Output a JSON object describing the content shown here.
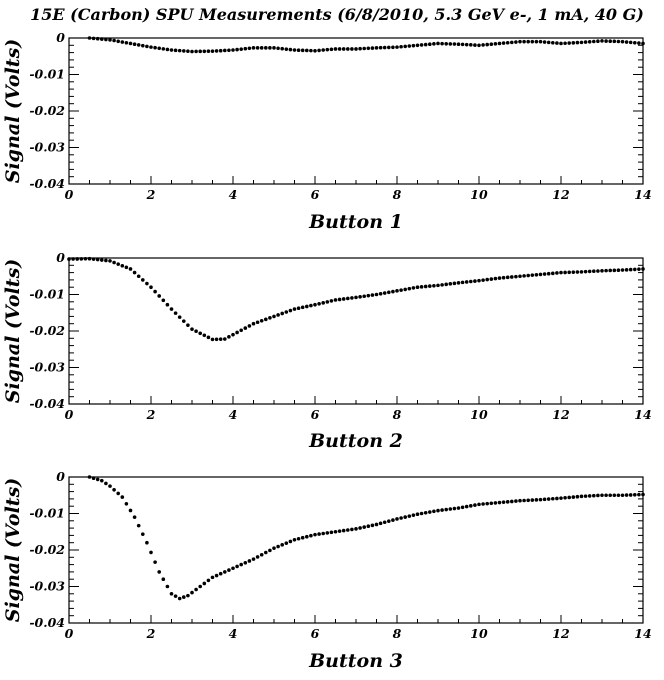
{
  "title": "15E (Carbon) SPU Measurements (6/8/2010, 5.3 GeV e-, 1 mA, 40 G)",
  "chart_data": [
    {
      "type": "scatter",
      "xlabel": "Button 1",
      "ylabel": "Signal (Volts)",
      "xlim": [
        0,
        14
      ],
      "ylim": [
        -0.04,
        0
      ],
      "xticks": [
        "0",
        "2",
        "4",
        "6",
        "8",
        "10",
        "12",
        "14"
      ],
      "yticks": [
        "0",
        "-0.01",
        "-0.02",
        "-0.03",
        "-0.04"
      ],
      "grid": false,
      "legend": "none",
      "marker_color": "#000000",
      "points": [
        [
          0.5,
          0.0
        ],
        [
          1.0,
          -0.0005
        ],
        [
          1.5,
          -0.0015
        ],
        [
          2.0,
          -0.0025
        ],
        [
          2.5,
          -0.0033
        ],
        [
          3.0,
          -0.0037
        ],
        [
          3.5,
          -0.0036
        ],
        [
          4.0,
          -0.0033
        ],
        [
          4.5,
          -0.0027
        ],
        [
          5.0,
          -0.0027
        ],
        [
          5.5,
          -0.0033
        ],
        [
          6.0,
          -0.0035
        ],
        [
          6.5,
          -0.003
        ],
        [
          7.0,
          -0.003
        ],
        [
          7.5,
          -0.0027
        ],
        [
          8.0,
          -0.0025
        ],
        [
          8.5,
          -0.002
        ],
        [
          9.0,
          -0.0015
        ],
        [
          9.5,
          -0.0017
        ],
        [
          10.0,
          -0.002
        ],
        [
          10.5,
          -0.0015
        ],
        [
          11.0,
          -0.001
        ],
        [
          11.5,
          -0.001
        ],
        [
          12.0,
          -0.0015
        ],
        [
          12.5,
          -0.0012
        ],
        [
          13.0,
          -0.0008
        ],
        [
          13.5,
          -0.001
        ],
        [
          14.0,
          -0.0015
        ]
      ]
    },
    {
      "type": "scatter",
      "xlabel": "Button 2",
      "ylabel": "Signal (Volts)",
      "xlim": [
        0,
        14
      ],
      "ylim": [
        -0.04,
        0
      ],
      "xticks": [
        "0",
        "2",
        "4",
        "6",
        "8",
        "10",
        "12",
        "14"
      ],
      "yticks": [
        "0",
        "-0.01",
        "-0.02",
        "-0.03",
        "-0.04"
      ],
      "grid": false,
      "legend": "none",
      "marker_color": "#000000",
      "points": [
        [
          0.0,
          -0.0003
        ],
        [
          0.5,
          -0.0002
        ],
        [
          1.0,
          -0.0008
        ],
        [
          1.5,
          -0.003
        ],
        [
          2.0,
          -0.008
        ],
        [
          2.5,
          -0.014
        ],
        [
          3.0,
          -0.0195
        ],
        [
          3.5,
          -0.0223
        ],
        [
          3.8,
          -0.0222
        ],
        [
          4.0,
          -0.021
        ],
        [
          4.5,
          -0.018
        ],
        [
          5.0,
          -0.016
        ],
        [
          5.5,
          -0.014
        ],
        [
          6.0,
          -0.0128
        ],
        [
          6.5,
          -0.0115
        ],
        [
          7.0,
          -0.0108
        ],
        [
          7.5,
          -0.01
        ],
        [
          8.0,
          -0.009
        ],
        [
          8.5,
          -0.008
        ],
        [
          9.0,
          -0.0075
        ],
        [
          9.5,
          -0.0068
        ],
        [
          10.0,
          -0.0062
        ],
        [
          10.5,
          -0.0055
        ],
        [
          11.0,
          -0.005
        ],
        [
          11.5,
          -0.0045
        ],
        [
          12.0,
          -0.004
        ],
        [
          12.5,
          -0.0038
        ],
        [
          13.0,
          -0.0035
        ],
        [
          13.5,
          -0.0033
        ],
        [
          14.0,
          -0.003
        ]
      ]
    },
    {
      "type": "scatter",
      "xlabel": "Button 3",
      "ylabel": "Signal (Volts)",
      "xlim": [
        0,
        14
      ],
      "ylim": [
        -0.04,
        0
      ],
      "xticks": [
        "0",
        "2",
        "4",
        "6",
        "8",
        "10",
        "12",
        "14"
      ],
      "yticks": [
        "0",
        "-0.01",
        "-0.02",
        "-0.03",
        "-0.04"
      ],
      "grid": false,
      "legend": "none",
      "marker_color": "#000000",
      "points": [
        [
          0.5,
          0.0
        ],
        [
          0.8,
          -0.001
        ],
        [
          1.0,
          -0.0025
        ],
        [
          1.3,
          -0.0055
        ],
        [
          1.6,
          -0.011
        ],
        [
          1.9,
          -0.018
        ],
        [
          2.2,
          -0.026
        ],
        [
          2.5,
          -0.032
        ],
        [
          2.7,
          -0.0333
        ],
        [
          2.9,
          -0.0325
        ],
        [
          3.2,
          -0.03
        ],
        [
          3.5,
          -0.0275
        ],
        [
          4.0,
          -0.025
        ],
        [
          4.5,
          -0.0225
        ],
        [
          5.0,
          -0.0195
        ],
        [
          5.5,
          -0.0172
        ],
        [
          6.0,
          -0.0158
        ],
        [
          6.5,
          -0.015
        ],
        [
          7.0,
          -0.0142
        ],
        [
          7.5,
          -0.013
        ],
        [
          8.0,
          -0.0115
        ],
        [
          8.5,
          -0.0102
        ],
        [
          9.0,
          -0.0092
        ],
        [
          9.5,
          -0.0085
        ],
        [
          10.0,
          -0.0075
        ],
        [
          10.5,
          -0.007
        ],
        [
          11.0,
          -0.0065
        ],
        [
          11.5,
          -0.0062
        ],
        [
          12.0,
          -0.0058
        ],
        [
          12.5,
          -0.0053
        ],
        [
          13.0,
          -0.005
        ],
        [
          13.5,
          -0.005
        ],
        [
          14.0,
          -0.0048
        ]
      ]
    }
  ]
}
